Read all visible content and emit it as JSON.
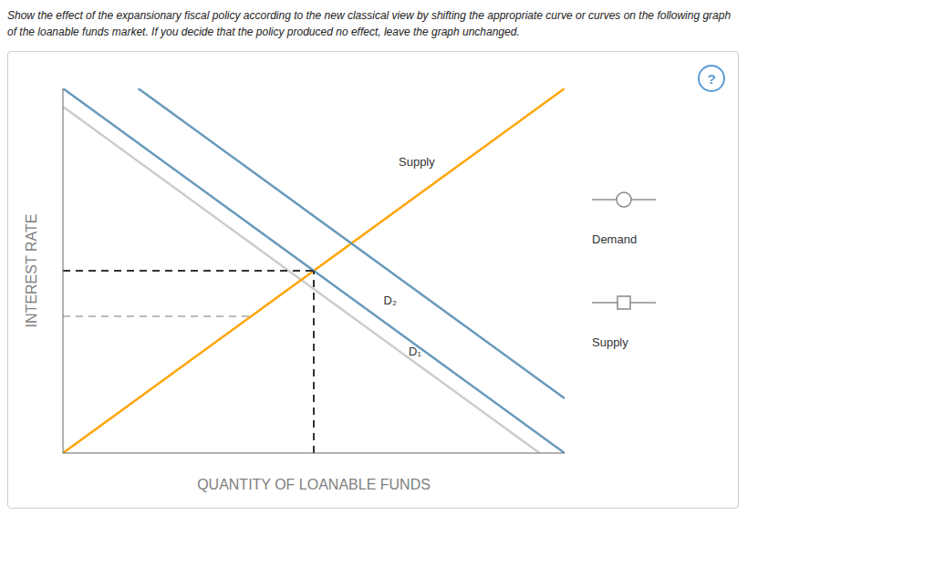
{
  "chart_data": {
    "type": "line",
    "title": "Show the effect of the expansionary fiscal policy according to the new classical view by shifting the appropriate curve or curves on the following graph",
    "subtitle": "of the loanable funds market. If you decide that the policy produced no effect, leave the graph unchanged.",
    "xlabel": "QUANTITY OF LOANABLE FUNDS",
    "ylabel": "INTEREST RATE",
    "xlim": [
      0,
      10
    ],
    "ylim": [
      0,
      10
    ],
    "xticks": [],
    "yticks": [],
    "tick_labels": false,
    "grid": false,
    "series": [
      {
        "x": [
          0,
          9.5
        ],
        "values": [
          9.5,
          0
        ],
        "color": "#cccccc",
        "line_style": "solid"
      },
      {
        "x": [
          0,
          10
        ],
        "values": [
          0,
          10
        ],
        "color": "#FFA500",
        "line_style": "solid"
      },
      {
        "x": [
          0,
          10
        ],
        "values": [
          10,
          0
        ],
        "color": "#6699BB",
        "line_style": "solid"
      },
      {
        "x": [
          1.5,
          10
        ],
        "values": [
          10,
          1.5
        ],
        "color": "#6699BB",
        "line_style": "solid"
      },
      {
        "x": [
          0,
          5
        ],
        "values": [
          5,
          5
        ],
        "color": "#333333",
        "line_style": "dashed"
      },
      {
        "x": [
          0,
          3.75
        ],
        "values": [
          3.75,
          3.75
        ],
        "color": "#bbbbbb",
        "line_style": "dashed"
      },
      {
        "x": [
          5,
          5
        ],
        "values": [
          0,
          5
        ],
        "color": "#333333",
        "line_style": "dashed"
      }
    ],
    "annotations": [
      {
        "text": "Supply",
        "x": 6.6,
        "y": 8.0
      },
      {
        "text": "D₂",
        "x": 6.3,
        "y": 4.2
      },
      {
        "text": "D₁",
        "x": 6.8,
        "y": 2.8
      },
      {
        "text": "?"
      }
    ],
    "legend_entries": [
      {
        "name": "Demand",
        "marker": "circle"
      },
      {
        "name": "Supply",
        "marker": "square"
      }
    ]
  }
}
